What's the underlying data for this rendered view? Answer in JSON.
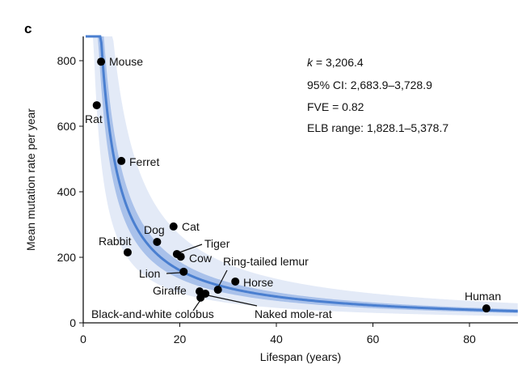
{
  "panel_label": "c",
  "chart_data": {
    "type": "scatter",
    "xlabel": "Lifespan (years)",
    "ylabel": "Mean mutation rate per year",
    "xlim": [
      0,
      90
    ],
    "ylim": [
      0,
      880
    ],
    "xticks": [
      0,
      20,
      40,
      60,
      80
    ],
    "yticks": [
      0,
      200,
      400,
      600,
      800
    ],
    "fit": {
      "formula": "y = k / x",
      "k": 3206.4,
      "ci": [
        2683.9,
        3728.9
      ],
      "elb": [
        1828.1,
        5378.7
      ]
    },
    "annotations": [
      "k = 3,206.4",
      "95% CI: 2,683.9–3,728.9",
      "FVE = 0.82",
      "ELB range: 1,828.1–5,378.7"
    ],
    "points": [
      {
        "label": "Mouse",
        "x": 3.7,
        "y": 797
      },
      {
        "label": "Rat",
        "x": 2.8,
        "y": 664
      },
      {
        "label": "Ferret",
        "x": 7.9,
        "y": 494
      },
      {
        "label": "Cat",
        "x": 18.7,
        "y": 294
      },
      {
        "label": "Dog",
        "x": 15.3,
        "y": 247
      },
      {
        "label": "Rabbit",
        "x": 9.2,
        "y": 215
      },
      {
        "label": "Tiger",
        "x": 19.4,
        "y": 210
      },
      {
        "label": "Cow",
        "x": 20.2,
        "y": 202
      },
      {
        "label": "Lion",
        "x": 20.8,
        "y": 156
      },
      {
        "label": "Ring-tailed lemur",
        "x": 27.9,
        "y": 101
      },
      {
        "label": "Horse",
        "x": 31.5,
        "y": 126
      },
      {
        "label": "Giraffe",
        "x": 24.1,
        "y": 96
      },
      {
        "label": "Naked mole-rat",
        "x": 25.3,
        "y": 89
      },
      {
        "label": "Black-and-white colobus",
        "x": 24.3,
        "y": 77
      },
      {
        "label": "Human",
        "x": 83.5,
        "y": 44
      }
    ]
  },
  "colors": {
    "line": "#4a7fd0",
    "ci": "#a9c1ea",
    "elb": "#e3eaf7",
    "point": "#000000"
  }
}
